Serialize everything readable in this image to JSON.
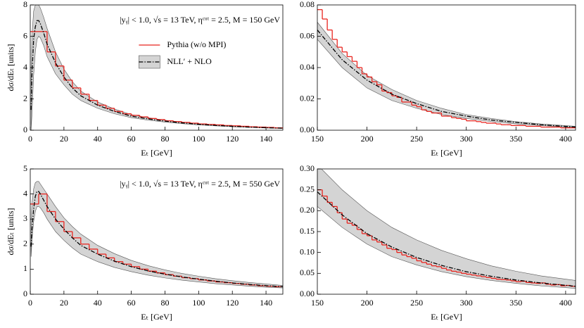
{
  "chart_data": [
    {
      "type": "histogram",
      "annotation": "|yᵧ| < 1.0,  √s = 13 TeV,  ηᶜᵘᵗ = 2.5,  M = 150 GeV",
      "xlabel": "Eₜ [GeV]",
      "ylabel": "dσ/dEₜ [units]",
      "legend": "upper center",
      "xlim": [
        0,
        150
      ],
      "ylim": [
        0,
        8
      ],
      "xticks": [
        0,
        20,
        40,
        60,
        80,
        100,
        120,
        140
      ],
      "yticks": [
        0,
        2,
        4,
        6,
        8
      ],
      "histogram": {
        "name": "Pythia (w/o MPI)",
        "color": "#e8251f",
        "bins": [
          0,
          5,
          10,
          15,
          20,
          25,
          30,
          35,
          40,
          45,
          50,
          55,
          60,
          65,
          70,
          75,
          80,
          85,
          90,
          95,
          100,
          105,
          110,
          115,
          120,
          125,
          130,
          135,
          140,
          145,
          150
        ],
        "counts": [
          6.3,
          6.3,
          5.0,
          4.1,
          3.2,
          2.7,
          2.3,
          1.9,
          1.6,
          1.4,
          1.2,
          1.05,
          0.95,
          0.85,
          0.75,
          0.68,
          0.6,
          0.55,
          0.5,
          0.45,
          0.4,
          0.37,
          0.34,
          0.3,
          0.28,
          0.25,
          0.22,
          0.2,
          0.18,
          0.15
        ]
      },
      "curve": {
        "name": "NLL′ + NLO",
        "color": "#000000",
        "band_color": "#d4d4d4",
        "x": [
          0.5,
          1,
          2,
          3,
          4,
          5,
          6,
          8,
          10,
          15,
          20,
          25,
          30,
          40,
          50,
          60,
          70,
          80,
          90,
          100,
          110,
          120,
          130,
          140,
          150
        ],
        "values": [
          1.3,
          3.5,
          5.8,
          6.6,
          7.0,
          7.0,
          6.8,
          6.2,
          5.5,
          4.3,
          3.4,
          2.7,
          2.2,
          1.6,
          1.2,
          0.9,
          0.72,
          0.58,
          0.47,
          0.38,
          0.31,
          0.25,
          0.2,
          0.16,
          0.13
        ],
        "upper": [
          4,
          6,
          7.6,
          8,
          8,
          8,
          7.8,
          7.2,
          6.5,
          5.0,
          3.9,
          3.1,
          2.5,
          1.8,
          1.35,
          1.0,
          0.8,
          0.64,
          0.52,
          0.42,
          0.34,
          0.28,
          0.22,
          0.18,
          0.15
        ],
        "lower": [
          0,
          1,
          3.5,
          5,
          5.8,
          6.0,
          5.9,
          5.4,
          4.7,
          3.6,
          2.9,
          2.3,
          1.9,
          1.4,
          1.05,
          0.8,
          0.64,
          0.52,
          0.42,
          0.34,
          0.28,
          0.22,
          0.18,
          0.14,
          0.11
        ]
      }
    },
    {
      "type": "histogram",
      "xlabel": "Eₜ [GeV]",
      "xlim": [
        150,
        410
      ],
      "ylim": [
        0,
        0.08
      ],
      "xticks": [
        150,
        200,
        250,
        300,
        350,
        400
      ],
      "yticks": [
        {
          "value": 0,
          "label": "0.00"
        },
        0.02,
        0.04,
        0.06,
        0.08
      ],
      "histogram": {
        "color": "#e8251f",
        "bins": [
          150,
          155,
          160,
          165,
          170,
          175,
          180,
          185,
          190,
          195,
          200,
          205,
          210,
          215,
          220,
          225,
          230,
          235,
          240,
          245,
          250,
          255,
          260,
          265,
          270,
          275,
          280,
          285,
          290,
          295,
          300,
          305,
          310,
          315,
          320,
          325,
          330,
          335,
          340,
          345,
          350,
          355,
          360,
          365,
          370,
          375,
          380,
          385,
          390,
          395,
          400,
          405,
          410
        ],
        "counts": [
          0.077,
          0.071,
          0.064,
          0.058,
          0.053,
          0.05,
          0.047,
          0.044,
          0.04,
          0.036,
          0.034,
          0.031,
          0.029,
          0.025,
          0.024,
          0.022,
          0.021,
          0.018,
          0.018,
          0.016,
          0.015,
          0.013,
          0.012,
          0.011,
          0.011,
          0.009,
          0.009,
          0.008,
          0.0075,
          0.007,
          0.006,
          0.006,
          0.0055,
          0.005,
          0.0045,
          0.0045,
          0.004,
          0.0035,
          0.0035,
          0.003,
          0.003,
          0.003,
          0.0025,
          0.0025,
          0.0025,
          0.002,
          0.002,
          0.002,
          0.002,
          0.0015,
          0.0015,
          0.0015
        ]
      },
      "curve": {
        "color": "#000000",
        "band_color": "#d4d4d4",
        "x": [
          150,
          175,
          200,
          225,
          250,
          275,
          300,
          325,
          350,
          375,
          410
        ],
        "values": [
          0.064,
          0.045,
          0.032,
          0.023,
          0.017,
          0.012,
          0.009,
          0.0065,
          0.005,
          0.0035,
          0.002
        ],
        "upper": [
          0.069,
          0.049,
          0.035,
          0.026,
          0.019,
          0.014,
          0.01,
          0.0075,
          0.0055,
          0.004,
          0.0025
        ],
        "lower": [
          0.058,
          0.04,
          0.027,
          0.019,
          0.014,
          0.01,
          0.0075,
          0.0055,
          0.004,
          0.003,
          0.0017
        ]
      }
    },
    {
      "type": "histogram",
      "annotation": "|yᵧ| < 1.0,  √s = 13 TeV,  ηᶜᵘᵗ = 2.5,  M = 550 GeV",
      "xlabel": "Eₜ [GeV]",
      "ylabel": "dσ/dEₜ [units]",
      "xlim": [
        0,
        150
      ],
      "ylim": [
        0,
        5
      ],
      "xticks": [
        0,
        20,
        40,
        60,
        80,
        100,
        120,
        140
      ],
      "yticks": [
        0,
        1,
        2,
        3,
        4,
        5
      ],
      "histogram": {
        "color": "#e8251f",
        "bins": [
          0,
          5,
          10,
          15,
          20,
          25,
          30,
          35,
          40,
          45,
          50,
          55,
          60,
          65,
          70,
          75,
          80,
          85,
          90,
          95,
          100,
          105,
          110,
          115,
          120,
          125,
          130,
          135,
          140,
          145,
          150
        ],
        "counts": [
          3.6,
          4.0,
          3.3,
          2.9,
          2.5,
          2.25,
          2.0,
          1.8,
          1.6,
          1.45,
          1.3,
          1.2,
          1.1,
          1.0,
          0.92,
          0.85,
          0.78,
          0.72,
          0.66,
          0.62,
          0.57,
          0.53,
          0.49,
          0.46,
          0.43,
          0.4,
          0.37,
          0.34,
          0.32,
          0.3
        ]
      },
      "curve": {
        "color": "#000000",
        "band_color": "#d4d4d4",
        "x": [
          0.5,
          1,
          2,
          3,
          4,
          5,
          6,
          8,
          10,
          15,
          20,
          25,
          30,
          40,
          50,
          60,
          70,
          80,
          90,
          100,
          110,
          120,
          130,
          140,
          150
        ],
        "values": [
          1.9,
          2.6,
          3.4,
          3.9,
          4.1,
          4.1,
          4.0,
          3.75,
          3.5,
          3.0,
          2.6,
          2.25,
          1.95,
          1.6,
          1.32,
          1.1,
          0.93,
          0.8,
          0.69,
          0.6,
          0.52,
          0.45,
          0.39,
          0.34,
          0.3
        ],
        "upper": [
          3.0,
          3.6,
          4.2,
          4.45,
          4.5,
          4.5,
          4.4,
          4.2,
          4.0,
          3.5,
          3.05,
          2.7,
          2.4,
          1.95,
          1.62,
          1.35,
          1.14,
          0.97,
          0.83,
          0.72,
          0.62,
          0.54,
          0.47,
          0.41,
          0.35
        ],
        "lower": [
          1.5,
          2.1,
          2.9,
          3.3,
          3.5,
          3.5,
          3.45,
          3.25,
          3.0,
          2.5,
          2.15,
          1.85,
          1.6,
          1.3,
          1.07,
          0.9,
          0.76,
          0.65,
          0.56,
          0.49,
          0.42,
          0.37,
          0.32,
          0.28,
          0.25
        ]
      }
    },
    {
      "type": "histogram",
      "xlabel": "Eₜ [GeV]",
      "xlim": [
        150,
        410
      ],
      "ylim": [
        0,
        0.3
      ],
      "xticks": [
        150,
        200,
        250,
        300,
        350,
        400
      ],
      "yticks": [
        {
          "value": 0,
          "label": "0.00"
        },
        0.05,
        {
          "value": 0.1,
          "label": "0.10"
        },
        0.15,
        {
          "value": 0.2,
          "label": "0.20"
        },
        0.25,
        {
          "value": 0.3,
          "label": "0.30"
        }
      ],
      "histogram": {
        "color": "#e8251f",
        "bins": [
          150,
          155,
          160,
          165,
          170,
          175,
          180,
          185,
          190,
          195,
          200,
          205,
          210,
          215,
          220,
          225,
          230,
          235,
          240,
          245,
          250,
          255,
          260,
          265,
          270,
          275,
          280,
          285,
          290,
          295,
          300,
          305,
          310,
          315,
          320,
          325,
          330,
          335,
          340,
          345,
          350,
          355,
          360,
          365,
          370,
          375,
          380,
          385,
          390,
          395,
          400,
          405,
          410
        ],
        "counts": [
          0.25,
          0.235,
          0.22,
          0.21,
          0.195,
          0.18,
          0.17,
          0.165,
          0.155,
          0.145,
          0.14,
          0.13,
          0.125,
          0.118,
          0.11,
          0.107,
          0.1,
          0.094,
          0.09,
          0.086,
          0.08,
          0.076,
          0.072,
          0.068,
          0.066,
          0.062,
          0.058,
          0.055,
          0.053,
          0.05,
          0.048,
          0.046,
          0.044,
          0.042,
          0.04,
          0.038,
          0.036,
          0.035,
          0.034,
          0.032,
          0.03,
          0.031,
          0.028,
          0.027,
          0.026,
          0.027,
          0.024,
          0.022,
          0.023,
          0.02,
          0.021,
          0.019
        ]
      },
      "curve": {
        "color": "#000000",
        "band_color": "#d4d4d4",
        "x": [
          150,
          175,
          200,
          225,
          250,
          275,
          300,
          325,
          350,
          375,
          410
        ],
        "values": [
          0.245,
          0.19,
          0.145,
          0.113,
          0.088,
          0.069,
          0.054,
          0.043,
          0.034,
          0.027,
          0.019
        ],
        "upper": [
          0.31,
          0.25,
          0.2,
          0.16,
          0.13,
          0.105,
          0.085,
          0.068,
          0.055,
          0.044,
          0.033
        ],
        "lower": [
          0.21,
          0.16,
          0.12,
          0.09,
          0.07,
          0.054,
          0.042,
          0.033,
          0.026,
          0.02,
          0.014
        ]
      }
    }
  ]
}
